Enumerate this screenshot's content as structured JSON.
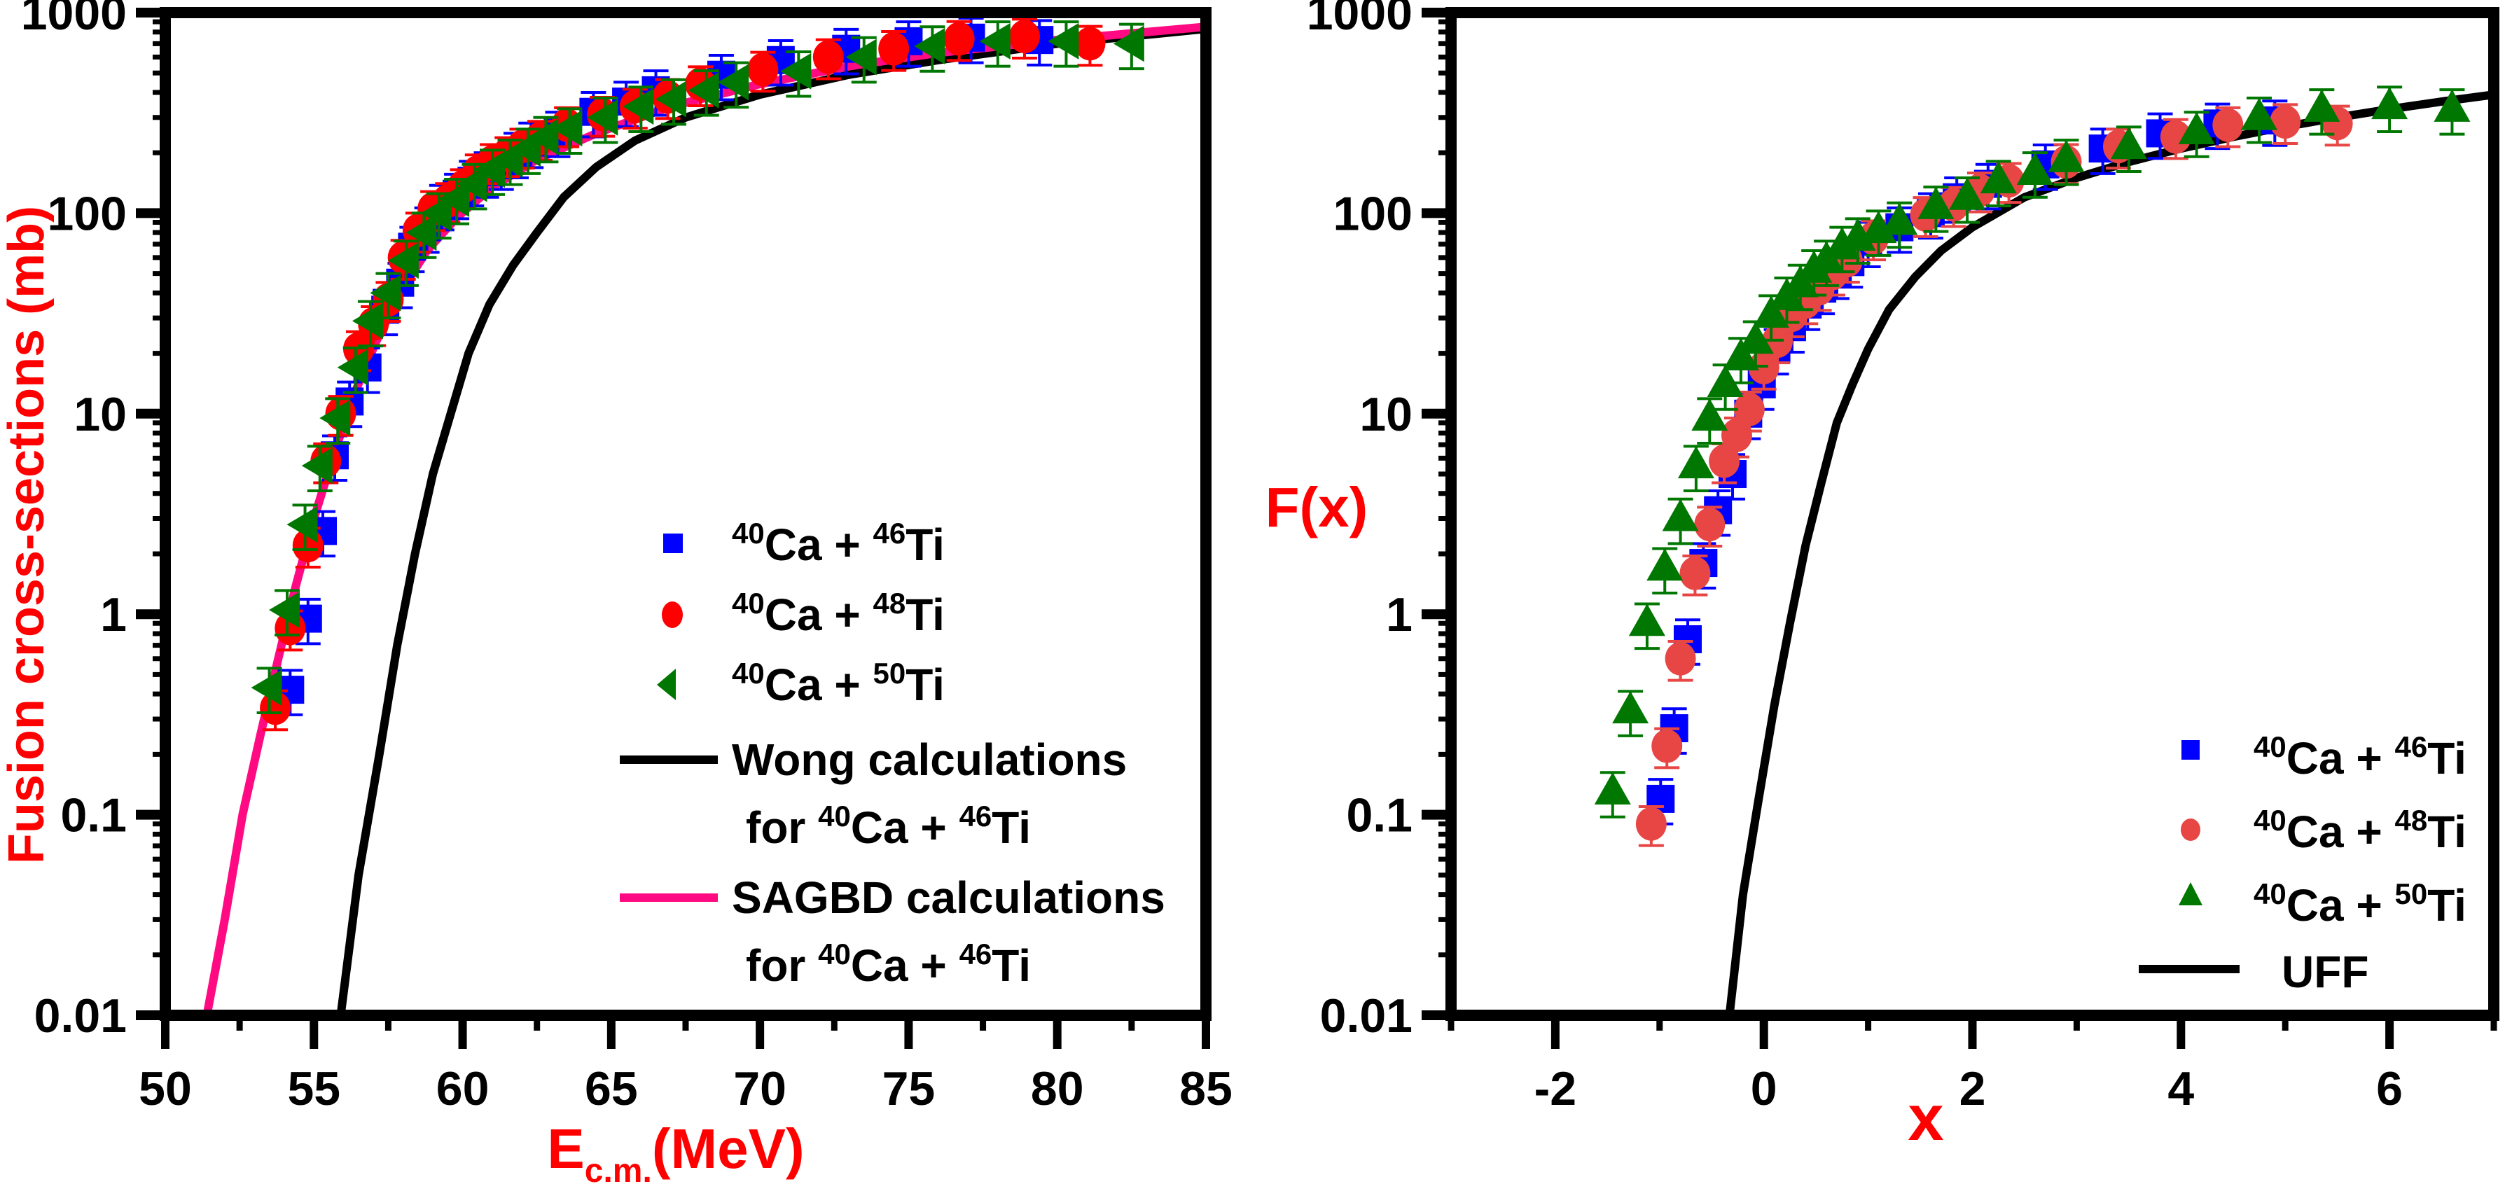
{
  "chart_data": [
    {
      "type": "scatter",
      "id": "left",
      "title": "",
      "xlabel": "E",
      "xlabel_sub": "c.m.",
      "xlabel_suffix": "(MeV)",
      "ylabel": "Fusion cross-sections (mb)",
      "xscale": "linear",
      "yscale": "log",
      "xlim": [
        50,
        85
      ],
      "ylim": [
        0.01,
        1000
      ],
      "xticks": [
        50,
        55,
        60,
        65,
        70,
        75,
        80,
        85
      ],
      "xtick_labels": [
        "50",
        "55",
        "60",
        "65",
        "70",
        "75",
        "80",
        "85"
      ],
      "yticks": [
        0.01,
        0.1,
        1,
        10,
        100,
        1000
      ],
      "ytick_labels": [
        "0.01",
        "0.1",
        "1",
        "10",
        "100",
        "1000"
      ],
      "grid": false,
      "legend_position": "right-center",
      "series": [
        {
          "name": "40Ca + 46Ti",
          "pre": "40",
          "mid": "Ca + ",
          "sup2": "46",
          "post": "Ti",
          "marker": "square",
          "color": "#0000ff",
          "error_rel": 0.25,
          "x": [
            54.2,
            54.8,
            55.3,
            55.7,
            56.2,
            56.8,
            57.4,
            57.9,
            58.3,
            58.8,
            59.3,
            59.8,
            60.3,
            60.8,
            61.3,
            61.8,
            62.3,
            63.2,
            64.4,
            65.5,
            66.5,
            68.7,
            70.7,
            72.9,
            75.0,
            77.1,
            79.4
          ],
          "y": [
            0.42,
            0.95,
            2.6,
            6.2,
            11.5,
            17,
            33,
            45,
            68,
            85,
            110,
            125,
            145,
            160,
            175,
            200,
            225,
            255,
            320,
            360,
            410,
            490,
            580,
            660,
            720,
            750,
            730
          ]
        },
        {
          "name": "40Ca + 48Ti",
          "pre": "40",
          "mid": "Ca + ",
          "sup2": "48",
          "post": "Ti",
          "marker": "circle",
          "color": "#ff0000",
          "error_rel": 0.22,
          "x": [
            53.7,
            54.2,
            54.8,
            55.4,
            55.9,
            56.5,
            57.0,
            57.5,
            58.0,
            58.5,
            59.0,
            59.5,
            60.0,
            60.5,
            61.0,
            61.5,
            62.0,
            62.6,
            63.5,
            64.7,
            65.8,
            66.9,
            68.0,
            70.1,
            72.3,
            74.5,
            76.7,
            78.9,
            81.1
          ],
          "y": [
            0.34,
            0.85,
            2.2,
            5.8,
            10,
            21,
            28,
            37,
            60,
            82,
            105,
            115,
            135,
            160,
            180,
            195,
            215,
            235,
            275,
            310,
            340,
            380,
            440,
            520,
            600,
            660,
            740,
            760,
            700
          ]
        },
        {
          "name": "40Ca + 50Ti",
          "pre": "40",
          "mid": "Ca + ",
          "sup2": "50",
          "post": "Ti",
          "marker": "triangle-left",
          "color": "#007700",
          "error_rel": 0.25,
          "x": [
            53.5,
            54.1,
            54.7,
            55.2,
            55.8,
            56.4,
            56.9,
            57.5,
            58.1,
            58.7,
            59.2,
            59.8,
            60.4,
            61.0,
            61.6,
            62.2,
            62.8,
            63.6,
            64.8,
            66.0,
            67.1,
            68.2,
            69.2,
            71.3,
            73.5,
            75.8,
            78.0,
            80.3,
            82.5
          ],
          "y": [
            0.43,
            1.05,
            2.8,
            5.5,
            9.5,
            17,
            29,
            40,
            58,
            80,
            100,
            118,
            140,
            165,
            185,
            210,
            240,
            265,
            300,
            340,
            370,
            410,
            450,
            510,
            600,
            680,
            720,
            720,
            700
          ]
        }
      ],
      "lines": [
        {
          "name": "Wong calculations for 40Ca + 46Ti",
          "legend_line1": "Wong calculations",
          "legend_line2_pre": "for ",
          "legend_line2_sup1": "40",
          "legend_line2_mid": "Ca + ",
          "legend_line2_sup2": "46",
          "legend_line2_post": "Ti",
          "color": "#000000",
          "x": [
            55.9,
            56.5,
            57.2,
            57.8,
            58.4,
            59.0,
            59.6,
            60.2,
            60.9,
            61.7,
            62.5,
            63.4,
            64.5,
            65.8,
            67.5,
            70,
            73,
            76,
            80,
            85
          ],
          "y": [
            0.01,
            0.05,
            0.2,
            0.7,
            2,
            5,
            10,
            20,
            35,
            55,
            80,
            120,
            170,
            230,
            300,
            390,
            490,
            580,
            700,
            830
          ]
        },
        {
          "name": "SAGBD calculations for 40Ca + 46Ti",
          "legend_line1": "SAGBD calculations",
          "legend_line2_pre": "for ",
          "legend_line2_sup1": "40",
          "legend_line2_mid": "Ca + ",
          "legend_line2_sup2": "46",
          "legend_line2_post": "Ti",
          "color": "#ff0a82",
          "x": [
            51.4,
            52.0,
            52.6,
            53.2,
            53.8,
            54.4,
            55.0,
            55.7,
            56.4,
            57.1,
            57.9,
            58.8,
            59.8,
            61,
            62.5,
            64.5,
            67,
            70,
            73,
            76,
            80,
            85
          ],
          "y": [
            0.01,
            0.03,
            0.1,
            0.25,
            0.6,
            1.4,
            3,
            6.5,
            13,
            23,
            40,
            65,
            95,
            135,
            185,
            250,
            340,
            440,
            540,
            630,
            730,
            850
          ]
        }
      ]
    },
    {
      "type": "scatter",
      "id": "right",
      "title": "",
      "xlabel": "x",
      "ylabel": "F(x)",
      "xscale": "linear",
      "yscale": "log",
      "xlim": [
        -3,
        7
      ],
      "ylim": [
        0.01,
        1000
      ],
      "xticks": [
        -2,
        0,
        2,
        4,
        6
      ],
      "xtick_labels": [
        "-2",
        "0",
        "2",
        "4",
        "6"
      ],
      "yticks": [
        0.01,
        0.1,
        1,
        10,
        100,
        1000
      ],
      "ytick_labels": [
        "0.01",
        "0.1",
        "1",
        "10",
        "100",
        "1000"
      ],
      "grid": false,
      "legend_position": "bottom-right",
      "series": [
        {
          "name": "40Ca + 46Ti",
          "pre": "40",
          "mid": "Ca + ",
          "sup2": "46",
          "post": "Ti",
          "marker": "square",
          "color": "#0000ff",
          "error_rel": 0.25,
          "x": [
            -0.99,
            -0.86,
            -0.73,
            -0.58,
            -0.44,
            -0.3,
            -0.15,
            -0.02,
            0.12,
            0.27,
            0.42,
            0.56,
            0.7,
            0.83,
            1.0,
            1.3,
            1.6,
            1.85,
            2.15,
            2.7,
            3.25,
            3.8,
            4.35,
            4.9
          ],
          "y": [
            0.12,
            0.27,
            0.75,
            1.8,
            3.3,
            5,
            10,
            14,
            21,
            27,
            35,
            42,
            50,
            57,
            72,
            85,
            100,
            120,
            140,
            175,
            210,
            250,
            280,
            290
          ]
        },
        {
          "name": "40Ca + 48Ti",
          "pre": "40",
          "mid": "Ca + ",
          "sup2": "48",
          "post": "Ti",
          "marker": "circle",
          "color": "#e84545",
          "error_rel": 0.22,
          "x": [
            -1.08,
            -0.93,
            -0.8,
            -0.66,
            -0.52,
            -0.38,
            -0.26,
            -0.14,
            0.0,
            0.13,
            0.27,
            0.4,
            0.53,
            0.66,
            0.8,
            1.05,
            1.55,
            1.82,
            2.07,
            2.35,
            2.9,
            3.4,
            3.95,
            4.45,
            5.0,
            5.5
          ],
          "y": [
            0.09,
            0.22,
            0.6,
            1.6,
            2.8,
            5.8,
            7.8,
            10.5,
            17,
            23,
            31,
            36,
            42,
            50,
            58,
            75,
            98,
            110,
            130,
            145,
            180,
            215,
            240,
            275,
            285,
            280
          ]
        },
        {
          "name": "40Ca + 50Ti",
          "pre": "40",
          "mid": "Ca + ",
          "sup2": "50",
          "post": "Ti",
          "marker": "triangle",
          "color": "#007700",
          "error_rel": 0.25,
          "x": [
            -1.45,
            -1.28,
            -1.12,
            -0.95,
            -0.8,
            -0.65,
            -0.52,
            -0.37,
            -0.22,
            -0.08,
            0.07,
            0.22,
            0.35,
            0.48,
            0.6,
            0.75,
            0.9,
            1.1,
            1.3,
            1.65,
            1.95,
            2.25,
            2.6,
            2.9,
            3.5,
            4.15,
            4.75,
            5.35,
            6.0,
            6.6
          ],
          "y": [
            0.13,
            0.33,
            0.9,
            1.7,
            3.0,
            5.5,
            9.5,
            14,
            19,
            23,
            31,
            38,
            44,
            52,
            58,
            68,
            75,
            82,
            90,
            108,
            120,
            145,
            160,
            185,
            215,
            255,
            300,
            330,
            340,
            330
          ]
        }
      ],
      "lines": [
        {
          "name": "UFF",
          "legend_line1": "UFF",
          "color": "#000000",
          "x": [
            -0.33,
            -0.2,
            -0.05,
            0.1,
            0.25,
            0.4,
            0.55,
            0.7,
            0.85,
            1.0,
            1.2,
            1.45,
            1.7,
            2.0,
            2.5,
            3.0,
            3.5,
            4.0,
            4.5,
            5.0,
            5.5,
            6.0,
            6.5,
            7.0
          ],
          "y": [
            0.01,
            0.04,
            0.12,
            0.35,
            0.9,
            2.2,
            4.5,
            9,
            14,
            21,
            33,
            48,
            65,
            85,
            120,
            150,
            180,
            210,
            240,
            270,
            300,
            330,
            360,
            390
          ]
        }
      ]
    }
  ]
}
